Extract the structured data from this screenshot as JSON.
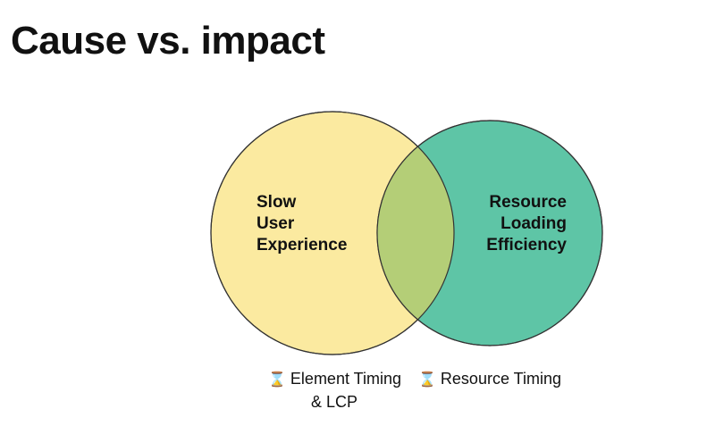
{
  "slide": {
    "title": "Cause vs. impact"
  },
  "venn": {
    "left": {
      "lines": [
        "Slow",
        "User",
        "Experience"
      ],
      "color": "#fbeaa0"
    },
    "right": {
      "lines": [
        "Resource",
        "Loading",
        "Efficiency"
      ],
      "color": "#5ec5a6"
    },
    "overlap_color": "#b4ce77",
    "outline_color": "#333333"
  },
  "captions": {
    "left": {
      "icon": "hourglass-icon",
      "glyph": "⌛",
      "line1": "Element Timing",
      "line2": "& LCP"
    },
    "right": {
      "icon": "hourglass-icon",
      "glyph": "⌛",
      "line1": "Resource Timing"
    }
  }
}
